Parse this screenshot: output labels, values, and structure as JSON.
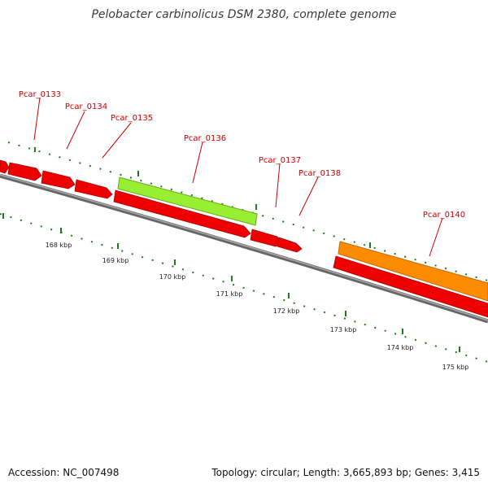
{
  "title": "Pelobacter carbinolicus DSM 2380, complete genome",
  "footer": {
    "accession": "Accession: NC_007498",
    "summary": "Topology: circular; Length: 3,665,893 bp; Genes: 3,415"
  },
  "colors": {
    "gene_forward": "#ee0000",
    "gene_highlight_green": "#99ee33",
    "gene_highlight_orange": "#ff8c00",
    "backbone": "#888888",
    "tick": "#1b7a1b",
    "label": "#cc0000"
  },
  "gene_labels": [
    "Pcar_0133",
    "Pcar_0134",
    "Pcar_0135",
    "Pcar_0136",
    "Pcar_0137",
    "Pcar_0138",
    "Pcar_0140"
  ],
  "scale_labels": [
    "168 kbp",
    "169 kbp",
    "170 kbp",
    "171 kbp",
    "172 kbp",
    "173 kbp",
    "174 kbp",
    "175 kbp"
  ]
}
